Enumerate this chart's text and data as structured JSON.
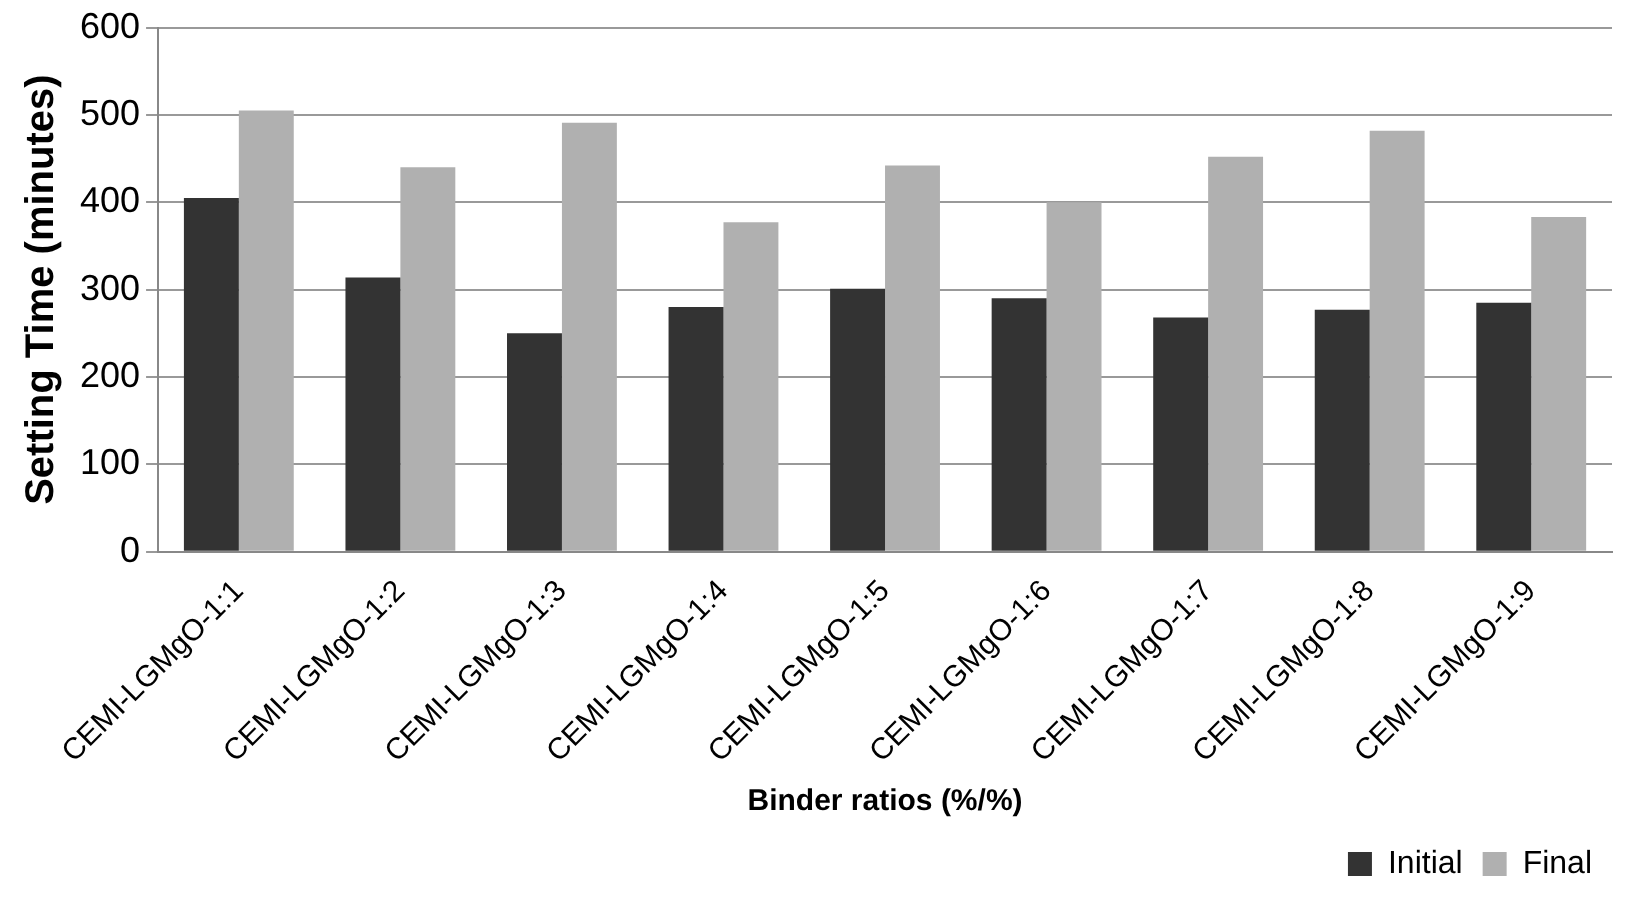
{
  "chart_data": {
    "type": "bar",
    "xlabel": "Binder ratios (%/%)",
    "ylabel": "Setting Time (minutes)",
    "categories": [
      "CEMI-LGMgO-1:1",
      "CEMI-LGMgO-1:2",
      "CEMI-LGMgO-1:3",
      "CEMI-LGMgO-1:4",
      "CEMI-LGMgO-1:5",
      "CEMI-LGMgO-1:6",
      "CEMI-LGMgO-1:7",
      "CEMI-LGMgO-1:8",
      "CEMI-LGMgO-1:9"
    ],
    "series": [
      {
        "name": "Initial",
        "color": "#333333",
        "values": [
          405,
          314,
          250,
          280,
          301,
          290,
          268,
          277,
          285
        ]
      },
      {
        "name": "Final",
        "color": "#b0b0b0",
        "values": [
          505,
          440,
          491,
          377,
          442,
          400,
          452,
          482,
          383
        ]
      }
    ],
    "ylim": [
      0,
      600
    ],
    "yticks": [
      0,
      100,
      200,
      300,
      400,
      500,
      600
    ],
    "grid": "y",
    "legend": "bottom right"
  }
}
